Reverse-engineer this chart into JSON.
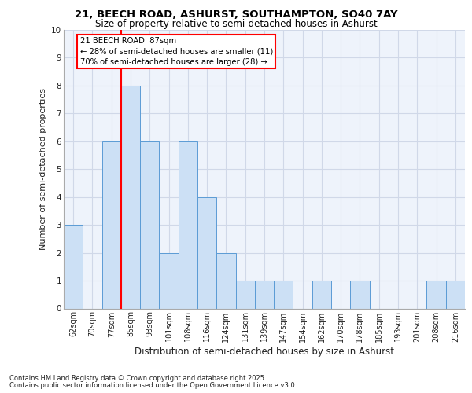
{
  "title1": "21, BEECH ROAD, ASHURST, SOUTHAMPTON, SO40 7AY",
  "title2": "Size of property relative to semi-detached houses in Ashurst",
  "xlabel": "Distribution of semi-detached houses by size in Ashurst",
  "ylabel": "Number of semi-detached properties",
  "categories": [
    "62sqm",
    "70sqm",
    "77sqm",
    "85sqm",
    "93sqm",
    "101sqm",
    "108sqm",
    "116sqm",
    "124sqm",
    "131sqm",
    "139sqm",
    "147sqm",
    "154sqm",
    "162sqm",
    "170sqm",
    "178sqm",
    "185sqm",
    "193sqm",
    "201sqm",
    "208sqm",
    "216sqm"
  ],
  "values": [
    3,
    0,
    6,
    8,
    6,
    2,
    6,
    4,
    2,
    1,
    1,
    1,
    0,
    1,
    0,
    1,
    0,
    0,
    0,
    1,
    1
  ],
  "bar_color": "#cce0f5",
  "bar_edge_color": "#5b9bd5",
  "red_line_index": 2.5,
  "highlight_label": "21 BEECH ROAD: 87sqm",
  "annotation_smaller": "← 28% of semi-detached houses are smaller (11)",
  "annotation_larger": "70% of semi-detached houses are larger (28) →",
  "ylim_max": 10,
  "grid_color": "#d0d8e8",
  "background_color": "#eef3fb",
  "footer1": "Contains HM Land Registry data © Crown copyright and database right 2025.",
  "footer2": "Contains public sector information licensed under the Open Government Licence v3.0."
}
